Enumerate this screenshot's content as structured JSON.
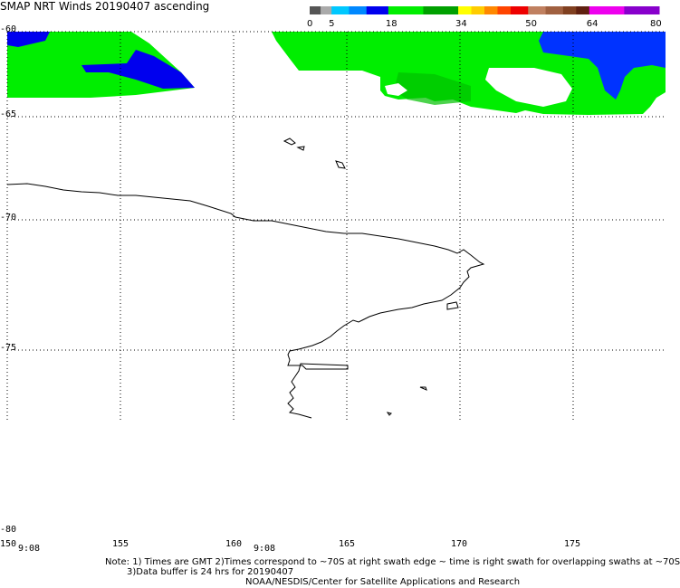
{
  "title": "SMAP NRT Winds 20190407 ascending",
  "colorbar": {
    "ticks": [
      "0",
      "5",
      "18",
      "34",
      "50",
      "64",
      "80"
    ],
    "segments": [
      {
        "from": 0,
        "to": 2.5,
        "color": "#555555"
      },
      {
        "from": 2.5,
        "to": 5,
        "color": "#aaaaaa"
      },
      {
        "from": 5,
        "to": 9,
        "color": "#00c8ff"
      },
      {
        "from": 9,
        "to": 13,
        "color": "#0088ff"
      },
      {
        "from": 13,
        "to": 18,
        "color": "#0000ee"
      },
      {
        "from": 18,
        "to": 26,
        "color": "#00ee00"
      },
      {
        "from": 26,
        "to": 34,
        "color": "#00a000"
      },
      {
        "from": 34,
        "to": 37,
        "color": "#ffff00"
      },
      {
        "from": 37,
        "to": 40,
        "color": "#ffcc00"
      },
      {
        "from": 40,
        "to": 43,
        "color": "#ff8800"
      },
      {
        "from": 43,
        "to": 46,
        "color": "#ff4400"
      },
      {
        "from": 46,
        "to": 50,
        "color": "#ee0000"
      },
      {
        "from": 50,
        "to": 54,
        "color": "#c08060"
      },
      {
        "from": 54,
        "to": 58,
        "color": "#a06040"
      },
      {
        "from": 58,
        "to": 61,
        "color": "#804020"
      },
      {
        "from": 61,
        "to": 64,
        "color": "#602010"
      },
      {
        "from": 64,
        "to": 72,
        "color": "#ee00ee"
      },
      {
        "from": 72,
        "to": 80,
        "color": "#8800cc"
      }
    ]
  },
  "map": {
    "lat_labels": [
      "-60",
      "-65",
      "-70",
      "-75",
      "-80"
    ],
    "lat_values": [
      -60,
      -65,
      -70,
      -75,
      -80
    ],
    "lon_labels": [
      "150",
      "155",
      "160",
      "165",
      "170",
      "175"
    ],
    "lon_values": [
      150,
      155,
      160,
      165,
      170,
      175
    ],
    "time_labels": [
      "9:08",
      "9:08"
    ],
    "colors": {
      "wind_green": "#00ee00",
      "wind_dark_green": "#00c000",
      "wind_blue": "#0000ee",
      "wind_light_blue": "#0044ff",
      "coastline": "#000000",
      "grid": "#000000"
    }
  },
  "notes": {
    "line1": "Note: 1) Times are GMT 2)Times correspond to ~70S at right swath edge ~ time is right swath for overlapping swaths at ~70S",
    "line2": "3)Data buffer is 24 hrs for 20190407",
    "line3": "NOAA/NESDIS/Center for Satellite Applications and Research"
  }
}
